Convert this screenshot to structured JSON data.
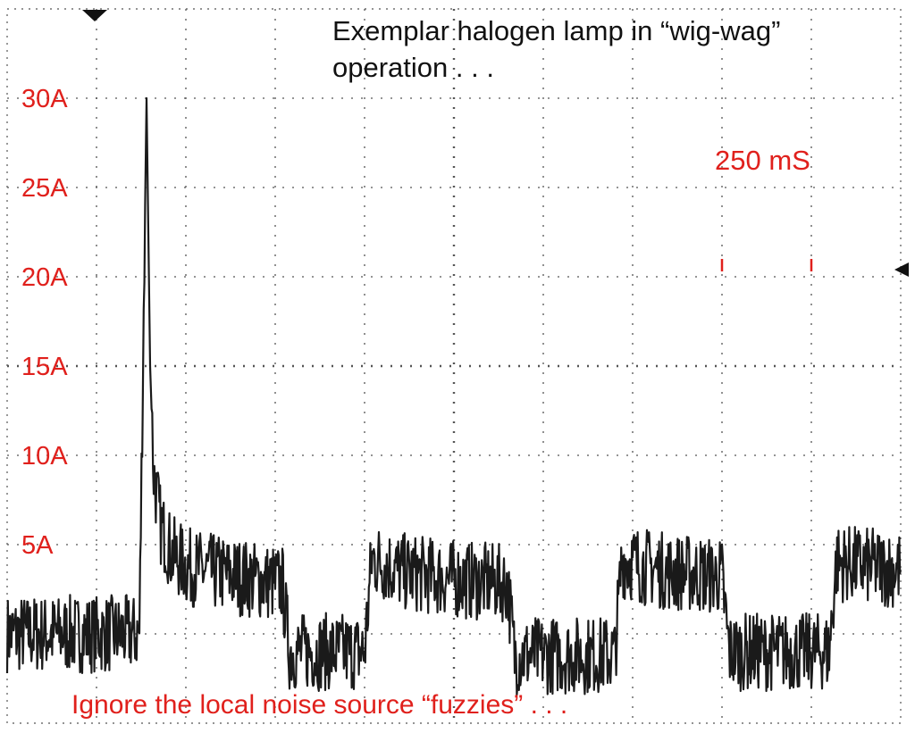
{
  "chart_data": {
    "type": "line",
    "title_lines": [
      "Exemplar halogen lamp in “wig-wag”",
      "operation . . ."
    ],
    "xlabel": "",
    "ylabel": "",
    "y_tick_labels": [
      "30A",
      "25A",
      "20A",
      "15A",
      "10A",
      "5A"
    ],
    "y_tick_values": [
      30,
      25,
      20,
      15,
      10,
      5
    ],
    "ylim": [
      -5,
      35
    ],
    "xlim": [
      0,
      2500
    ],
    "x_unit": "mS",
    "grid": true,
    "scale_marker": {
      "label": "250 mS",
      "duration_ms": 250,
      "start_ms": 2000
    },
    "annotation": "Ignore the local noise source “fuzzies” . . .",
    "series": [
      {
        "x": [
          0,
          370,
          390,
          400,
          410,
          430,
          460,
          500,
          560,
          620,
          700,
          770,
          790,
          1000,
          1020,
          1060,
          1100,
          1200,
          1280,
          1360,
          1400,
          1420,
          1700,
          1720,
          1780,
          1850,
          2000,
          2020,
          2300,
          2320,
          2400,
          2500
        ],
        "y": [
          0,
          0,
          30,
          15,
          9,
          6,
          4.5,
          3.8,
          3.5,
          3.3,
          3,
          2.8,
          -1,
          -1,
          4.2,
          3.9,
          3.5,
          3.2,
          3,
          2.9,
          2.8,
          -1.2,
          -1.2,
          4.2,
          3.8,
          3.5,
          3.2,
          -1,
          -1,
          4,
          3.8,
          3.6
        ],
        "noise_amplitude": 2.2
      }
    ]
  }
}
